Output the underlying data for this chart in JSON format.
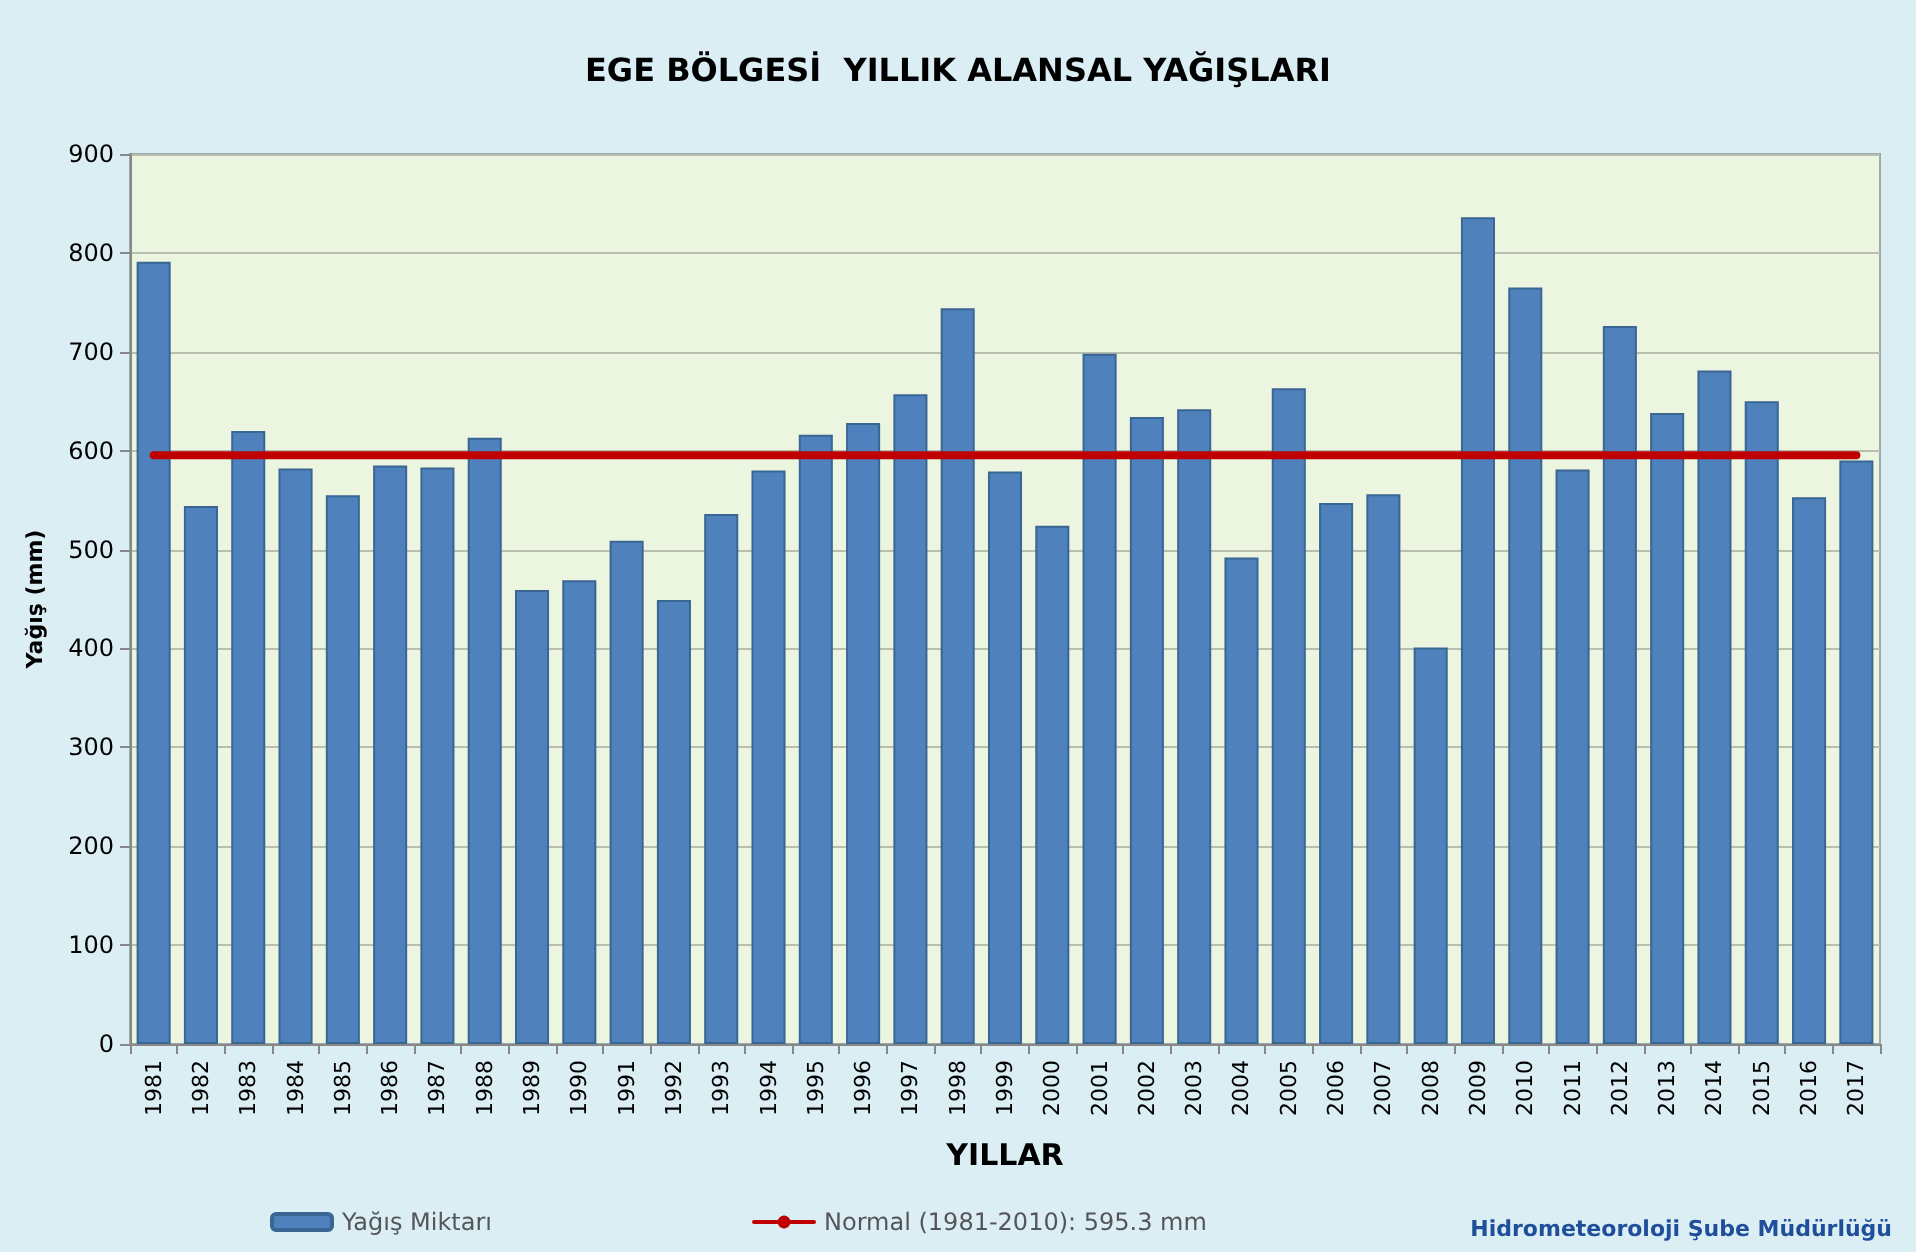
{
  "chart_data": {
    "type": "bar",
    "title": "EGE BÖLGESİ  YILLIK ALANSAL YAĞIŞLARI",
    "xlabel": "YILLAR",
    "ylabel": "Yağış (mm)",
    "categories": [
      "1981",
      "1982",
      "1983",
      "1984",
      "1985",
      "1986",
      "1987",
      "1988",
      "1989",
      "1990",
      "1991",
      "1992",
      "1993",
      "1994",
      "1995",
      "1996",
      "1997",
      "1998",
      "1999",
      "2000",
      "2001",
      "2002",
      "2003",
      "2004",
      "2005",
      "2006",
      "2007",
      "2008",
      "2009",
      "2010",
      "2011",
      "2012",
      "2013",
      "2014",
      "2015",
      "2016",
      "2017"
    ],
    "series": [
      {
        "name": "Yağış Miktarı",
        "color": "#4f81bd",
        "values": [
          791,
          544,
          620,
          582,
          555,
          585,
          583,
          613,
          459,
          469,
          509,
          449,
          536,
          580,
          616,
          628,
          657,
          744,
          579,
          524,
          698,
          634,
          642,
          492,
          663,
          547,
          556,
          401,
          836,
          765,
          581,
          726,
          638,
          681,
          650,
          553,
          590
        ]
      },
      {
        "name": "Normal (1981-2010): 595.3 mm",
        "type": "line",
        "color": "#c00000",
        "marker": "none",
        "values": [
          595.3,
          595.3,
          595.3,
          595.3,
          595.3,
          595.3,
          595.3,
          595.3,
          595.3,
          595.3,
          595.3,
          595.3,
          595.3,
          595.3,
          595.3,
          595.3,
          595.3,
          595.3,
          595.3,
          595.3,
          595.3,
          595.3,
          595.3,
          595.3,
          595.3,
          595.3,
          595.3,
          595.3,
          595.3,
          595.3,
          595.3,
          595.3,
          595.3,
          595.3,
          595.3,
          595.3,
          595.3
        ]
      }
    ],
    "ylim": [
      0,
      900
    ],
    "yticks": [
      0,
      100,
      200,
      300,
      400,
      500,
      600,
      700,
      800,
      900
    ],
    "grid": "y",
    "legend": "bottom",
    "annotations": [
      "Hidrometeoroloji Şube Müdürlüğü"
    ]
  }
}
